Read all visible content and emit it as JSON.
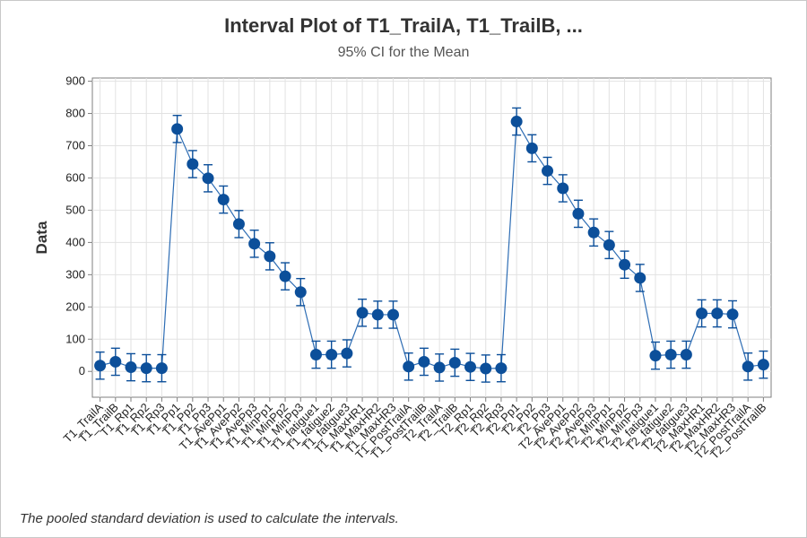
{
  "chart_data": {
    "type": "scatter",
    "title": "Interval Plot of T1_TrailA, T1_TrailB, ...",
    "subtitle": "95% CI for the Mean",
    "xlabel": "",
    "ylabel": "Data",
    "ylim": [
      -80,
      910
    ],
    "yticks": [
      0,
      100,
      200,
      300,
      400,
      500,
      600,
      700,
      800,
      900
    ],
    "grid": true,
    "ci_half_width": 42,
    "categories": [
      "T1_TrailA",
      "T1_TrailB",
      "T1_Rp1",
      "T1_Rp2",
      "T1_Rp3",
      "T1_Pp1",
      "T1_Pp2",
      "T1_Pp3",
      "T1_AvePp1",
      "T1_AvePp2",
      "T1_AvePp3",
      "T1_MinPp1",
      "T1_MinPp2",
      "T1_MinPp3",
      "T1_fatigue1",
      "T1_fatigue2",
      "T1_fatigue3",
      "T1_MaxHR1",
      "T1_MaxHR2",
      "T1_MaxHR3",
      "T1_PostTrailA",
      "T1_PostTrailB",
      "T2_TrailA",
      "T2_TrailB",
      "T2_Rp1",
      "T2_Rp2",
      "T2_Rp3",
      "T2_Pp1",
      "T2_Pp2",
      "T2_Pp3",
      "T2_AvePp1",
      "T2_AvePp2",
      "T2_AvePp3",
      "T2_MinPp1",
      "T2_MinPp2",
      "T2_MinPp3",
      "T2_fatigue1",
      "T2_fatigue2",
      "T2_fatigue3",
      "T2_MaxHR1",
      "T2_MaxHR2",
      "T2_MaxHR3",
      "T2_PostTrailA",
      "T2_PostTrailB"
    ],
    "series": [
      {
        "values": [
          18,
          30,
          13,
          10,
          10,
          752,
          643,
          599,
          533,
          457,
          396,
          357,
          295,
          246,
          52,
          52,
          56,
          182,
          176,
          176,
          15,
          30,
          12,
          27,
          14,
          9,
          10,
          775,
          692,
          622,
          568,
          489,
          431,
          392,
          331,
          290,
          49,
          52,
          52,
          180,
          180,
          177,
          15,
          21
        ]
      }
    ],
    "colors": {
      "series": "#0c4f9a",
      "line": "#2e6db4",
      "grid": "#e2e2e2",
      "axis": "#7f7f7f"
    },
    "footnote": "The pooled standard deviation is used to calculate the intervals."
  }
}
